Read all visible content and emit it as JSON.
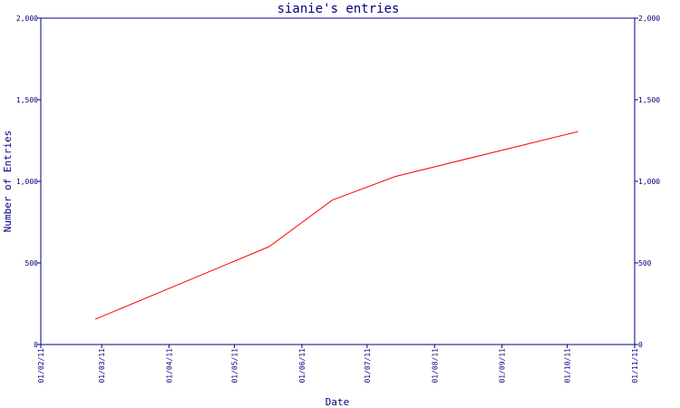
{
  "chart_data": {
    "type": "line",
    "title": "sianie's entries",
    "xlabel": "Date",
    "ylabel": "Number of Entries",
    "ylim": [
      0,
      2000
    ],
    "y_ticks": [
      {
        "value": 0,
        "label": "0"
      },
      {
        "value": 500,
        "label": "500"
      },
      {
        "value": 1000,
        "label": "1,000"
      },
      {
        "value": 1500,
        "label": "1,500"
      },
      {
        "value": 2000,
        "label": "2,000"
      }
    ],
    "x_ticks": [
      {
        "value": "2011-02-01",
        "label": "01/02/11"
      },
      {
        "value": "2011-03-01",
        "label": "01/03/11"
      },
      {
        "value": "2011-04-01",
        "label": "01/04/11"
      },
      {
        "value": "2011-05-01",
        "label": "01/05/11"
      },
      {
        "value": "2011-06-01",
        "label": "01/06/11"
      },
      {
        "value": "2011-07-01",
        "label": "01/07/11"
      },
      {
        "value": "2011-08-01",
        "label": "01/08/11"
      },
      {
        "value": "2011-09-01",
        "label": "01/09/11"
      },
      {
        "value": "2011-10-01",
        "label": "01/10/11"
      },
      {
        "value": "2011-11-01",
        "label": "01/11/11"
      }
    ],
    "xlim": [
      "2011-02-01",
      "2011-11-01"
    ],
    "grid": false,
    "series": [
      {
        "color": "#ff0000",
        "points": [
          {
            "x": "2011-02-26",
            "y": 155
          },
          {
            "x": "2011-05-17",
            "y": 600
          },
          {
            "x": "2011-06-15",
            "y": 885
          },
          {
            "x": "2011-07-14",
            "y": 1030
          },
          {
            "x": "2011-10-06",
            "y": 1305
          }
        ]
      }
    ]
  }
}
